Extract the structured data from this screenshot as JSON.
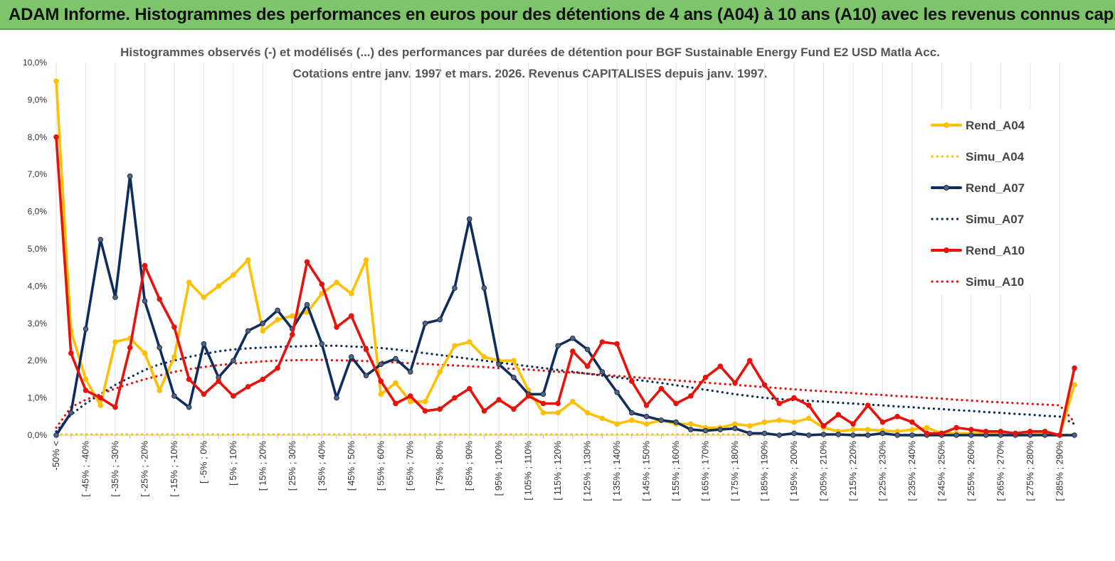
{
  "header": {
    "title": "ADAM Informe. Histogrammes des performances en euros pour des détentions de 4 ans (A04) à 10 ans (A10) avec les revenus connus capitalisés"
  },
  "chart_data": {
    "type": "line",
    "title_line1": "Histogrammes observés (-) et modélisés (...) des performances par durées de détention pour BGF Sustainable Energy Fund E2 USD Matla Acc.",
    "title_line2": "Cotations entre janv. 1997 et mars. 2026.  Revenus CAPITALISES depuis janv. 1997.",
    "ylim": [
      0,
      10
    ],
    "yticks": [
      "0,0%",
      "1,0%",
      "2,0%",
      "3,0%",
      "4,0%",
      "5,0%",
      "6,0%",
      "7,0%",
      "8,0%",
      "9,0%",
      "10,0%"
    ],
    "num_bins": 70,
    "x_tick_labels": [
      "-50% <",
      "[ -45% ; -40%",
      "[ -35% ; -30%",
      "[ -25% ; -20%",
      "[ -15% ; -10%",
      "[ -5% ; 0%",
      "[ 5% ; 10%",
      "[ 15% ; 20%",
      "[ 25% ; 30%",
      "[ 35% ; 40%",
      "[ 45% ; 50%",
      "[ 55% ; 60%",
      "[ 65% ; 70%",
      "[ 75% ; 80%",
      "[ 85% ; 90%",
      "[ 95% ; 100%",
      "[ 105% ; 110%",
      "[ 115% ; 120%",
      "[ 125% ; 130%",
      "[ 135% ; 140%",
      "[ 145% ; 150%",
      "[ 155% ; 160%",
      "[ 165% ; 170%",
      "[ 175% ; 180%",
      "[ 185% ; 190%",
      "[ 195% ; 200%",
      "[ 205% ; 210%",
      "[ 215% ; 220%",
      "[ 225% ; 230%",
      "[ 235% ; 240%",
      "[ 245% ; 250%",
      "[ 255% ; 260%",
      "[ 265% ; 270%",
      "[ 275% ; 280%",
      "[ 285% ; 290%"
    ],
    "series": [
      {
        "name": "Rend_A04",
        "color": "#ffc000",
        "style": "solid",
        "markers": true,
        "values": [
          9.5,
          2.8,
          1.5,
          0.8,
          2.5,
          2.6,
          2.2,
          1.2,
          2.1,
          4.1,
          3.7,
          4.0,
          4.3,
          4.7,
          2.8,
          3.1,
          3.2,
          3.3,
          3.8,
          4.1,
          3.8,
          4.7,
          1.1,
          1.4,
          0.9,
          0.9,
          1.7,
          2.4,
          2.5,
          2.1,
          2.0,
          2.0,
          1.2,
          0.6,
          0.6,
          0.9,
          0.6,
          0.45,
          0.3,
          0.4,
          0.3,
          0.4,
          0.3,
          0.3,
          0.2,
          0.2,
          0.3,
          0.25,
          0.35,
          0.4,
          0.35,
          0.45,
          0.2,
          0.1,
          0.15,
          0.15,
          0.12,
          0.1,
          0.15,
          0.2,
          0.05,
          0.05,
          0.05,
          0.05,
          0.05,
          0.05,
          0.05,
          0.05,
          0.0,
          1.35
        ]
      },
      {
        "name": "Simu_A04",
        "color": "#ffc000",
        "style": "dotted",
        "markers": false,
        "values": [
          0.02,
          0.02,
          0.02,
          0.02,
          0.02,
          0.02,
          0.02,
          0.02,
          0.02,
          0.02,
          0.02,
          0.02,
          0.02,
          0.02,
          0.02,
          0.02,
          0.02,
          0.02,
          0.02,
          0.02,
          0.02,
          0.02,
          0.02,
          0.02,
          0.02,
          0.02,
          0.02,
          0.02,
          0.02,
          0.02,
          0.02,
          0.02,
          0.02,
          0.02,
          0.02,
          0.02,
          0.02,
          0.02,
          0.02,
          0.02,
          0.02,
          0.02,
          0.02,
          0.02,
          0.02,
          0.02,
          0.02,
          0.02,
          0.02,
          0.02,
          0.02,
          0.02,
          0.02,
          0.02,
          0.02,
          0.02,
          0.02,
          0.02,
          0.02,
          0.02,
          0.02,
          0.02,
          0.02,
          0.02,
          0.02,
          0.02,
          0.02,
          0.02,
          0.02,
          0.02
        ]
      },
      {
        "name": "Rend_A07",
        "color": "#0f2d5c",
        "style": "solid",
        "markers": true,
        "values": [
          0.0,
          0.6,
          2.85,
          5.25,
          3.7,
          6.95,
          3.6,
          2.35,
          1.05,
          0.75,
          2.45,
          1.55,
          2.0,
          2.8,
          3.0,
          3.35,
          2.85,
          3.5,
          2.45,
          1.0,
          2.1,
          1.6,
          1.9,
          2.05,
          1.7,
          3.0,
          3.1,
          3.95,
          5.8,
          3.95,
          1.9,
          1.55,
          1.1,
          1.1,
          2.4,
          2.6,
          2.3,
          1.7,
          1.15,
          0.6,
          0.5,
          0.4,
          0.35,
          0.15,
          0.12,
          0.15,
          0.18,
          0.05,
          0.05,
          0.0,
          0.05,
          0.0,
          0.02,
          0.02,
          0.0,
          0.0,
          0.05,
          0.0,
          0.0,
          0.0,
          0.0,
          0.0,
          0.0,
          0.0,
          0.0,
          0.0,
          0.0,
          0.0,
          0.0,
          0.0
        ]
      },
      {
        "name": "Simu_A07",
        "color": "#0f2d5c",
        "style": "dotted",
        "markers": false,
        "values": [
          0.1,
          0.55,
          0.85,
          1.1,
          1.35,
          1.55,
          1.75,
          1.9,
          2.0,
          2.1,
          2.18,
          2.25,
          2.3,
          2.33,
          2.35,
          2.37,
          2.38,
          2.39,
          2.4,
          2.4,
          2.38,
          2.36,
          2.34,
          2.3,
          2.25,
          2.2,
          2.15,
          2.1,
          2.05,
          2.0,
          1.95,
          1.9,
          1.85,
          1.8,
          1.75,
          1.7,
          1.65,
          1.6,
          1.55,
          1.5,
          1.45,
          1.4,
          1.34,
          1.28,
          1.22,
          1.16,
          1.1,
          1.05,
          1.0,
          0.97,
          0.94,
          0.92,
          0.9,
          0.87,
          0.85,
          0.82,
          0.8,
          0.77,
          0.75,
          0.72,
          0.7,
          0.67,
          0.65,
          0.62,
          0.6,
          0.57,
          0.55,
          0.52,
          0.5,
          0.3
        ]
      },
      {
        "name": "Rend_A10",
        "color": "#e8120c",
        "style": "solid",
        "markers": true,
        "values": [
          8.0,
          2.2,
          1.2,
          1.0,
          0.75,
          2.35,
          4.55,
          3.65,
          2.9,
          1.5,
          1.1,
          1.45,
          1.05,
          1.3,
          1.5,
          1.8,
          2.7,
          4.65,
          4.05,
          2.9,
          3.2,
          2.3,
          1.45,
          0.85,
          1.05,
          0.65,
          0.7,
          1.0,
          1.25,
          0.65,
          0.95,
          0.7,
          1.05,
          0.85,
          0.85,
          2.25,
          1.85,
          2.5,
          2.45,
          1.45,
          0.8,
          1.25,
          0.85,
          1.05,
          1.55,
          1.85,
          1.4,
          2.0,
          1.35,
          0.85,
          1.0,
          0.8,
          0.25,
          0.55,
          0.3,
          0.8,
          0.35,
          0.5,
          0.35,
          0.05,
          0.05,
          0.2,
          0.15,
          0.1,
          0.1,
          0.05,
          0.1,
          0.1,
          0.0,
          1.8
        ]
      },
      {
        "name": "Simu_A10",
        "color": "#e8120c",
        "style": "dotted",
        "markers": false,
        "values": [
          0.2,
          0.75,
          0.95,
          1.1,
          1.25,
          1.38,
          1.5,
          1.6,
          1.7,
          1.77,
          1.83,
          1.88,
          1.92,
          1.95,
          1.98,
          2.0,
          2.01,
          2.02,
          2.02,
          2.01,
          2.0,
          1.99,
          1.97,
          1.95,
          1.93,
          1.91,
          1.89,
          1.87,
          1.85,
          1.83,
          1.8,
          1.78,
          1.76,
          1.73,
          1.7,
          1.68,
          1.65,
          1.62,
          1.59,
          1.56,
          1.53,
          1.5,
          1.47,
          1.44,
          1.41,
          1.38,
          1.35,
          1.32,
          1.29,
          1.26,
          1.23,
          1.2,
          1.18,
          1.15,
          1.13,
          1.1,
          1.08,
          1.05,
          1.03,
          1.0,
          0.98,
          0.95,
          0.93,
          0.9,
          0.88,
          0.86,
          0.84,
          0.82,
          0.8,
          0.35
        ]
      }
    ],
    "legend": [
      "Rend_A04",
      "Simu_A04",
      "Rend_A07",
      "Simu_A07",
      "Rend_A10",
      "Simu_A10"
    ],
    "legend_position": "right",
    "grid": "vertical"
  }
}
